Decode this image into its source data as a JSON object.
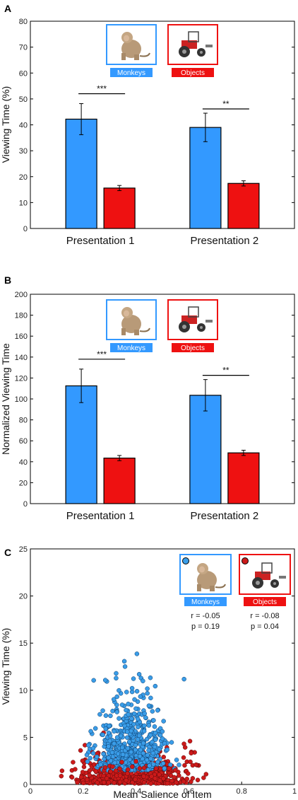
{
  "colors": {
    "monkeys": "#3399ff",
    "objects": "#ee1111",
    "monkeys_dot": "#3a9de8",
    "objects_dot": "#cc1a1a"
  },
  "chart_data": [
    {
      "panel": "A",
      "type": "bar",
      "ylabel": "Viewing Time (%)",
      "ylim": [
        0,
        80
      ],
      "yticks": [
        "0",
        "10",
        "20",
        "30",
        "40",
        "50",
        "60",
        "70",
        "80"
      ],
      "categories": [
        "Presentation 1",
        "Presentation 2"
      ],
      "series": [
        {
          "name": "Monkeys",
          "values": [
            42.2,
            39.0
          ],
          "errors": [
            6.0,
            5.5
          ]
        },
        {
          "name": "Objects",
          "values": [
            15.6,
            17.4
          ],
          "errors": [
            1.0,
            1.0
          ]
        }
      ],
      "significance": [
        "***",
        "**"
      ],
      "legend_icons": [
        "monkey-image",
        "tractor-image"
      ]
    },
    {
      "panel": "B",
      "type": "bar",
      "ylabel": "Normalized Viewing Time",
      "ylim": [
        0,
        200
      ],
      "yticks": [
        "0",
        "20",
        "40",
        "60",
        "80",
        "100",
        "120",
        "140",
        "160",
        "180",
        "200"
      ],
      "categories": [
        "Presentation 1",
        "Presentation 2"
      ],
      "series": [
        {
          "name": "Monkeys",
          "values": [
            112.5,
            103.5
          ],
          "errors": [
            16.0,
            15.0
          ]
        },
        {
          "name": "Objects",
          "values": [
            43.5,
            48.5
          ],
          "errors": [
            2.5,
            2.5
          ]
        }
      ],
      "significance": [
        "***",
        "**"
      ],
      "legend_icons": [
        "monkey-image",
        "tractor-image"
      ]
    },
    {
      "panel": "C",
      "type": "scatter",
      "xlabel": "Mean Salience of Item",
      "ylabel": "Viewing Time (%)",
      "xlim": [
        0,
        1
      ],
      "ylim": [
        0,
        25
      ],
      "xticks": [
        "0",
        "0.2",
        "0.4",
        "0.6",
        "0.8",
        "1"
      ],
      "yticks": [
        "0",
        "5",
        "10",
        "15",
        "20",
        "25"
      ],
      "series": [
        {
          "name": "Monkeys",
          "r": "r = -0.05",
          "p": "p = 0.19",
          "center_x": 0.38,
          "x_spread": 0.055,
          "y_range": [
            0.3,
            22
          ]
        },
        {
          "name": "Objects",
          "r": "r = -0.08",
          "p": "p = 0.04",
          "center_x": 0.38,
          "x_spread": 0.1,
          "y_range": [
            0.1,
            6.5
          ]
        }
      ]
    }
  ],
  "labels": {
    "panel_a": "A",
    "panel_b": "B",
    "panel_c": "C",
    "monkeys": "Monkeys",
    "objects": "Objects",
    "r_label": "r",
    "p_label": "p"
  }
}
